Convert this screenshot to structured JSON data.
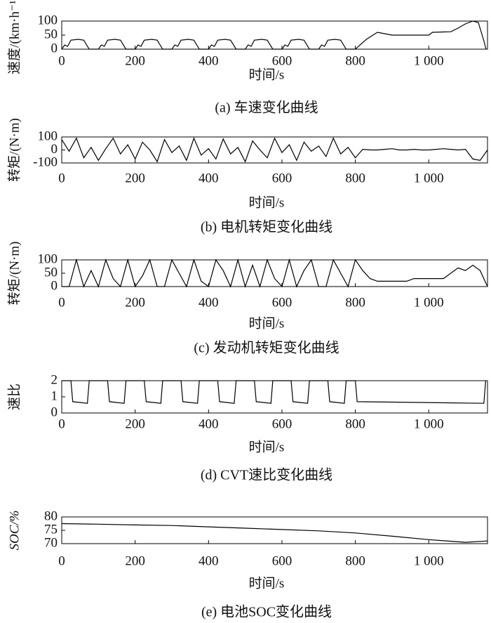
{
  "chart_data": [
    {
      "type": "line",
      "ylabel": "速度/(km·h⁻¹)",
      "xlabel": "时间/s",
      "caption": "(a) 车速变化曲线",
      "xlim": [
        0,
        1160
      ],
      "ylim": [
        0,
        100
      ],
      "yticks": [
        0,
        50,
        100
      ],
      "xticks": [
        0,
        200,
        400,
        600,
        800,
        {
          "value": 1000,
          "label": "1 000"
        }
      ],
      "color": "#000000",
      "x": [
        0,
        8,
        16,
        25,
        45,
        60,
        75,
        100,
        108,
        116,
        125,
        145,
        160,
        175,
        200,
        208,
        216,
        225,
        245,
        260,
        275,
        300,
        308,
        316,
        325,
        345,
        360,
        375,
        400,
        408,
        416,
        425,
        445,
        460,
        475,
        500,
        508,
        516,
        525,
        545,
        560,
        575,
        600,
        608,
        616,
        625,
        645,
        660,
        675,
        700,
        708,
        716,
        725,
        745,
        760,
        775,
        800,
        830,
        860,
        880,
        900,
        1000,
        1010,
        1060,
        1080,
        1100,
        1120,
        1135,
        1150,
        1156
      ],
      "values": [
        0,
        15,
        10,
        32,
        35,
        32,
        0,
        0,
        15,
        10,
        32,
        35,
        32,
        0,
        0,
        15,
        10,
        32,
        35,
        32,
        0,
        0,
        15,
        10,
        32,
        35,
        32,
        0,
        0,
        15,
        10,
        32,
        35,
        32,
        0,
        0,
        15,
        10,
        32,
        35,
        32,
        0,
        0,
        15,
        10,
        32,
        35,
        32,
        0,
        0,
        15,
        10,
        32,
        35,
        32,
        0,
        0,
        35,
        60,
        55,
        50,
        50,
        60,
        62,
        75,
        90,
        100,
        95,
        30,
        0
      ]
    },
    {
      "type": "line",
      "ylabel": "转矩/(N·m)",
      "xlabel": "时间/s",
      "caption": "(b) 电机转矩变化曲线",
      "xlim": [
        0,
        1160
      ],
      "ylim": [
        -100,
        100
      ],
      "yticks": [
        -100,
        0,
        100
      ],
      "xticks": [
        0,
        200,
        400,
        600,
        800,
        {
          "value": 1000,
          "label": "1 000"
        }
      ],
      "color": "#000000",
      "x": [
        0,
        20,
        40,
        60,
        80,
        100,
        120,
        140,
        160,
        180,
        200,
        220,
        240,
        260,
        280,
        300,
        320,
        340,
        360,
        380,
        400,
        420,
        440,
        460,
        480,
        500,
        520,
        540,
        560,
        580,
        600,
        620,
        640,
        660,
        680,
        700,
        720,
        740,
        760,
        780,
        800,
        820,
        840,
        860,
        880,
        900,
        920,
        940,
        960,
        980,
        1000,
        1020,
        1040,
        1060,
        1080,
        1100,
        1120,
        1140,
        1160
      ],
      "values": [
        80,
        -10,
        90,
        -60,
        20,
        -80,
        10,
        90,
        -30,
        40,
        -70,
        60,
        0,
        -90,
        80,
        -20,
        30,
        -80,
        90,
        -40,
        10,
        -70,
        85,
        -30,
        20,
        -90,
        70,
        0,
        -60,
        90,
        -20,
        40,
        -80,
        60,
        -10,
        30,
        -50,
        90,
        -30,
        20,
        -60,
        5,
        0,
        0,
        5,
        10,
        0,
        0,
        5,
        0,
        0,
        5,
        10,
        5,
        0,
        5,
        -70,
        -80,
        0
      ]
    },
    {
      "type": "line",
      "ylabel": "转矩/(N·m)",
      "xlabel": "时间/s",
      "caption": "(c) 发动机转矩变化曲线",
      "xlim": [
        0,
        1160
      ],
      "ylim": [
        0,
        100
      ],
      "yticks": [
        0,
        50,
        100
      ],
      "xticks": [
        0,
        200,
        400,
        600,
        800,
        {
          "value": 1000,
          "label": "1 000"
        }
      ],
      "color": "#000000",
      "x": [
        0,
        20,
        40,
        60,
        80,
        100,
        120,
        140,
        160,
        180,
        200,
        220,
        240,
        260,
        280,
        300,
        320,
        340,
        360,
        380,
        400,
        420,
        440,
        460,
        480,
        500,
        520,
        540,
        560,
        580,
        600,
        620,
        640,
        660,
        680,
        700,
        720,
        740,
        760,
        780,
        800,
        820,
        840,
        860,
        880,
        900,
        920,
        940,
        960,
        980,
        1000,
        1020,
        1040,
        1060,
        1080,
        1100,
        1120,
        1140,
        1160
      ],
      "values": [
        0,
        0,
        100,
        0,
        60,
        0,
        100,
        30,
        0,
        100,
        0,
        40,
        100,
        0,
        0,
        100,
        50,
        0,
        100,
        20,
        0,
        100,
        60,
        0,
        100,
        0,
        80,
        0,
        100,
        30,
        0,
        100,
        0,
        60,
        100,
        0,
        0,
        100,
        50,
        0,
        100,
        60,
        30,
        20,
        20,
        20,
        20,
        20,
        30,
        30,
        30,
        30,
        30,
        50,
        70,
        60,
        80,
        60,
        0
      ]
    },
    {
      "type": "line",
      "ylabel": "速比",
      "xlabel": "时间/s",
      "caption": "(d) CVT速比变化曲线",
      "xlim": [
        0,
        1160
      ],
      "ylim": [
        0,
        2
      ],
      "yticks": [
        0,
        1,
        2
      ],
      "xticks": [
        0,
        200,
        400,
        600,
        800,
        {
          "value": 1000,
          "label": "1 000"
        }
      ],
      "color": "#000000",
      "x": [
        0,
        25,
        30,
        70,
        75,
        100,
        125,
        130,
        170,
        175,
        200,
        225,
        230,
        270,
        275,
        300,
        325,
        330,
        370,
        375,
        400,
        425,
        430,
        470,
        475,
        500,
        525,
        530,
        570,
        575,
        600,
        625,
        630,
        670,
        675,
        700,
        725,
        730,
        770,
        775,
        800,
        805,
        1150,
        1155
      ],
      "values": [
        2,
        2,
        0.7,
        0.6,
        2,
        2,
        2,
        0.7,
        0.6,
        2,
        2,
        2,
        0.7,
        0.6,
        2,
        2,
        2,
        0.7,
        0.6,
        2,
        2,
        2,
        0.7,
        0.6,
        2,
        2,
        2,
        0.7,
        0.6,
        2,
        2,
        2,
        0.7,
        0.6,
        2,
        2,
        2,
        0.7,
        0.6,
        2,
        2,
        0.7,
        0.6,
        2
      ]
    },
    {
      "type": "line",
      "ylabel": "SOC/%",
      "xlabel": "时间/s",
      "caption": "(e) 电池SOC变化曲线",
      "xlim": [
        0,
        1160
      ],
      "ylim": [
        70,
        80
      ],
      "yticks": [
        70,
        75,
        80
      ],
      "xticks": [
        0,
        200,
        400,
        600,
        800,
        {
          "value": 1000,
          "label": "1 000"
        }
      ],
      "color": "#000000",
      "x": [
        0,
        100,
        200,
        300,
        400,
        500,
        600,
        700,
        800,
        900,
        1000,
        1100,
        1160
      ],
      "values": [
        77.5,
        77.3,
        77,
        76.8,
        76.3,
        75.8,
        75.3,
        74.8,
        74,
        72.8,
        71.5,
        70.5,
        71
      ]
    }
  ]
}
